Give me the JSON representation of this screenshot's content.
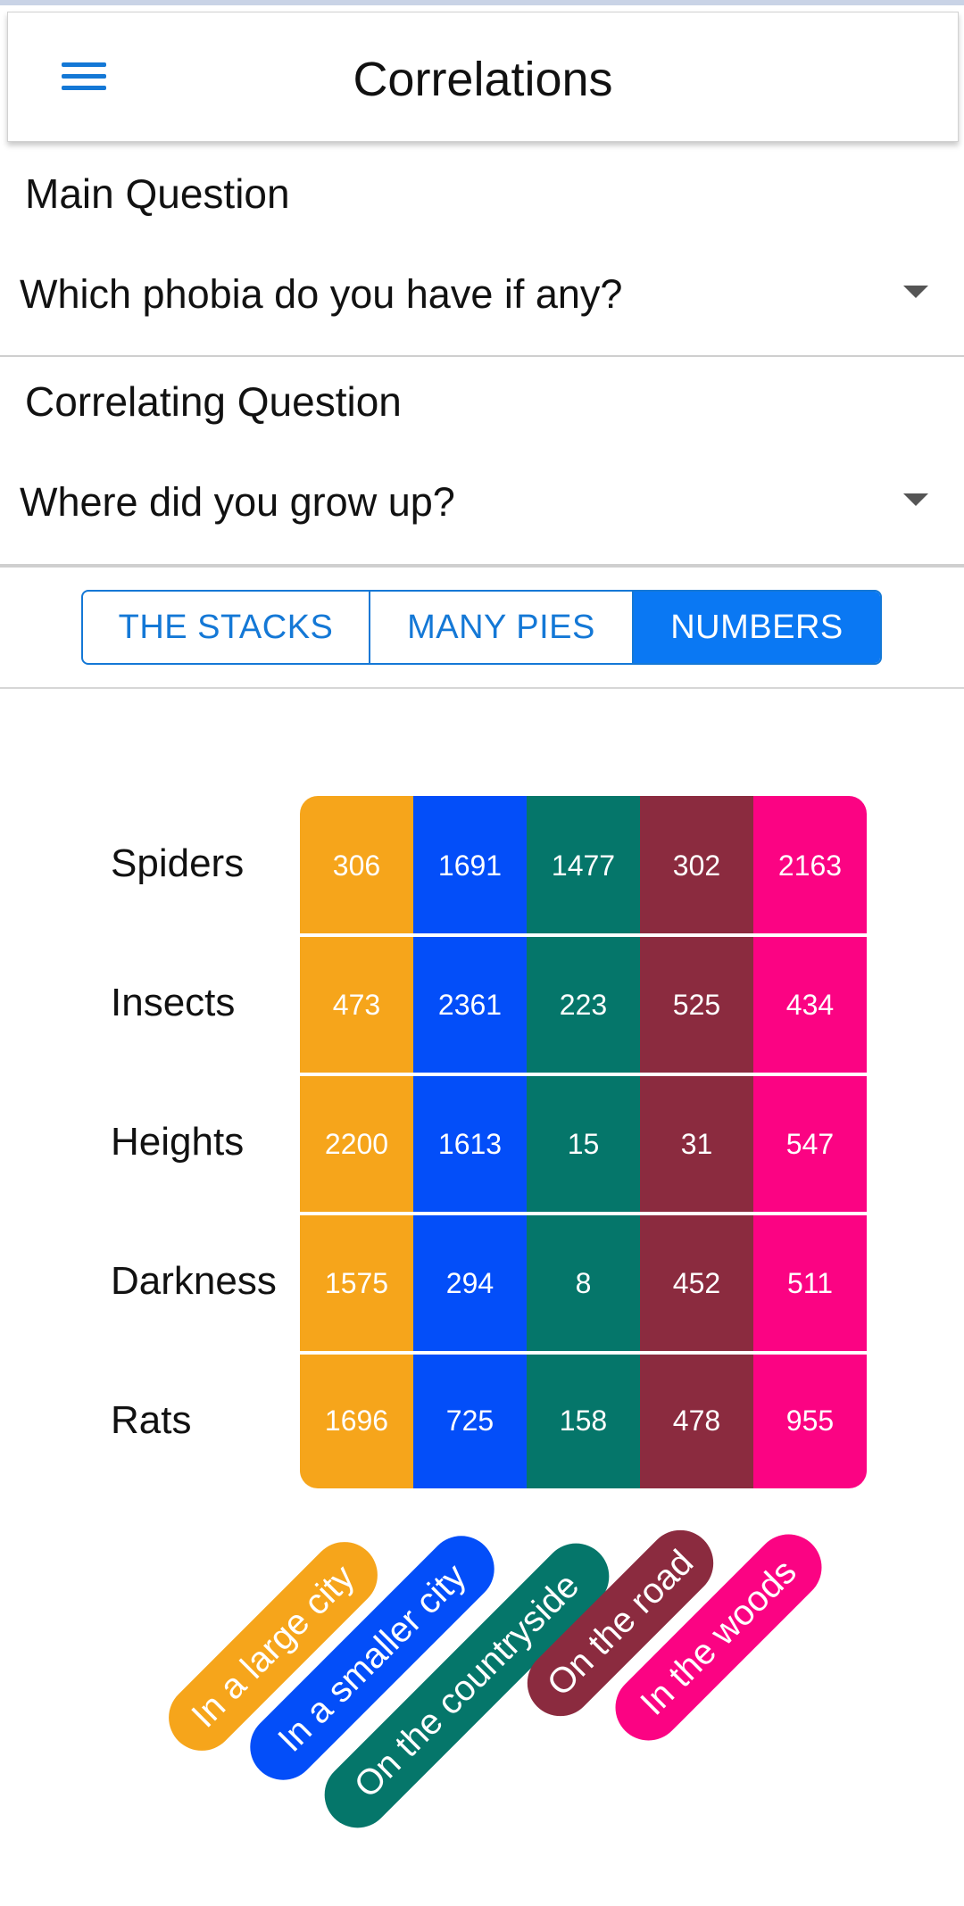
{
  "appbar": {
    "title": "Correlations",
    "menu_icon": "hamburger-menu-icon"
  },
  "main_question": {
    "label": "Main Question",
    "value": "Which phobia do you have if any?"
  },
  "correlating_question": {
    "label": "Correlating Question",
    "value": "Where did you grow up?"
  },
  "tabs": [
    {
      "label": "THE STACKS",
      "active": false
    },
    {
      "label": "MANY PIES",
      "active": false
    },
    {
      "label": "NUMBERS",
      "active": true
    }
  ],
  "colors": {
    "accent": "#1478d6",
    "columns": [
      "#f6a51b",
      "#034ef9",
      "#05766a",
      "#8b2b3f",
      "#fb0383"
    ]
  },
  "chart_data": {
    "type": "table",
    "rows": [
      "Spiders",
      "Insects",
      "Heights",
      "Darkness",
      "Rats"
    ],
    "columns": [
      "In a large city",
      "In a smaller city",
      "On the countryside",
      "On the road",
      "In the woods"
    ],
    "values": [
      [
        306,
        1691,
        1477,
        302,
        2163
      ],
      [
        473,
        2361,
        223,
        525,
        434
      ],
      [
        2200,
        1613,
        15,
        31,
        547
      ],
      [
        1575,
        294,
        8,
        452,
        511
      ],
      [
        1696,
        725,
        158,
        478,
        955
      ]
    ]
  }
}
